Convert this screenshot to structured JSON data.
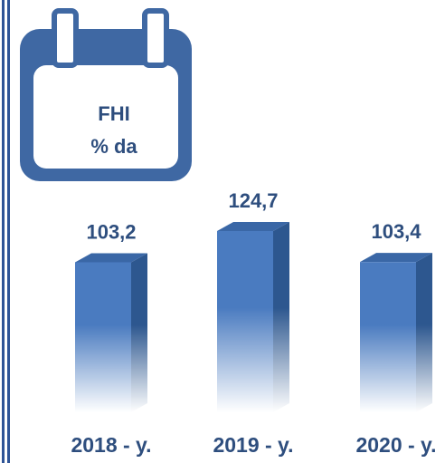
{
  "chart_data": {
    "type": "bar",
    "title": "FHI",
    "subtitle": "% da",
    "categories": [
      "2018 - y.",
      "2019 - y.",
      "2020 - y."
    ],
    "values": [
      103.2,
      124.7,
      103.4
    ],
    "value_labels": [
      "103,2",
      "124,7",
      "103,4"
    ],
    "color": "#4a7bc0"
  }
}
